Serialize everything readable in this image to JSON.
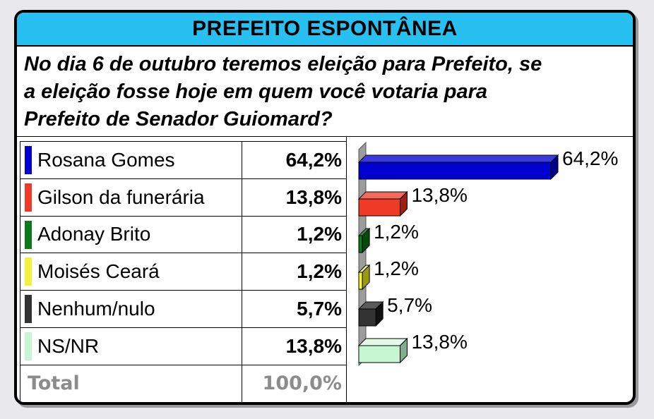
{
  "title": "PREFEITO ESPONTÂNEA",
  "question": {
    "line1": "No dia 6 de outubro teremos eleição para Prefeito, se",
    "line2": "a eleição fosse hoje em quem você votaria para",
    "line3": "Prefeito de Senador Guiomard?"
  },
  "rows": [
    {
      "name": "Rosana Gomes",
      "value": "64,2%",
      "color": "#0000d0",
      "side": "#00008a",
      "top": "#3a3ae0"
    },
    {
      "name": "Gilson da funerária",
      "value": "13,8%",
      "color": "#f03a28",
      "side": "#a01e12",
      "top": "#f26a5a"
    },
    {
      "name": "Adonay Brito",
      "value": "1,2%",
      "color": "#0a7a1a",
      "side": "#064a0e",
      "top": "#2a9a3a"
    },
    {
      "name": "Moisés Ceará",
      "value": "1,2%",
      "color": "#f2f23a",
      "side": "#9a9a10",
      "top": "#f6f67a"
    },
    {
      "name": "Nenhum/nulo",
      "value": "5,7%",
      "color": "#333333",
      "side": "#111111",
      "top": "#5a5a5a"
    },
    {
      "name": "NS/NR",
      "value": "13,8%",
      "color": "#c6f6d2",
      "side": "#7fae8a",
      "top": "#e2fbe8"
    }
  ],
  "total": {
    "label": "Total",
    "value": "100,0%"
  },
  "chart_data": {
    "type": "bar",
    "orientation": "horizontal",
    "categories": [
      "Rosana Gomes",
      "Gilson da funerária",
      "Adonay Brito",
      "Moisés Ceará",
      "Nenhum/nulo",
      "NS/NR"
    ],
    "values": [
      64.2,
      13.8,
      1.2,
      1.2,
      5.7,
      13.8
    ],
    "data_labels": [
      "64,2%",
      "13,8%",
      "1,2%",
      "1,2%",
      "5,7%",
      "13,8%"
    ],
    "title": "",
    "xlabel": "",
    "ylabel": "",
    "xlim": [
      0,
      64.2
    ],
    "grid": false,
    "style": "3d"
  }
}
